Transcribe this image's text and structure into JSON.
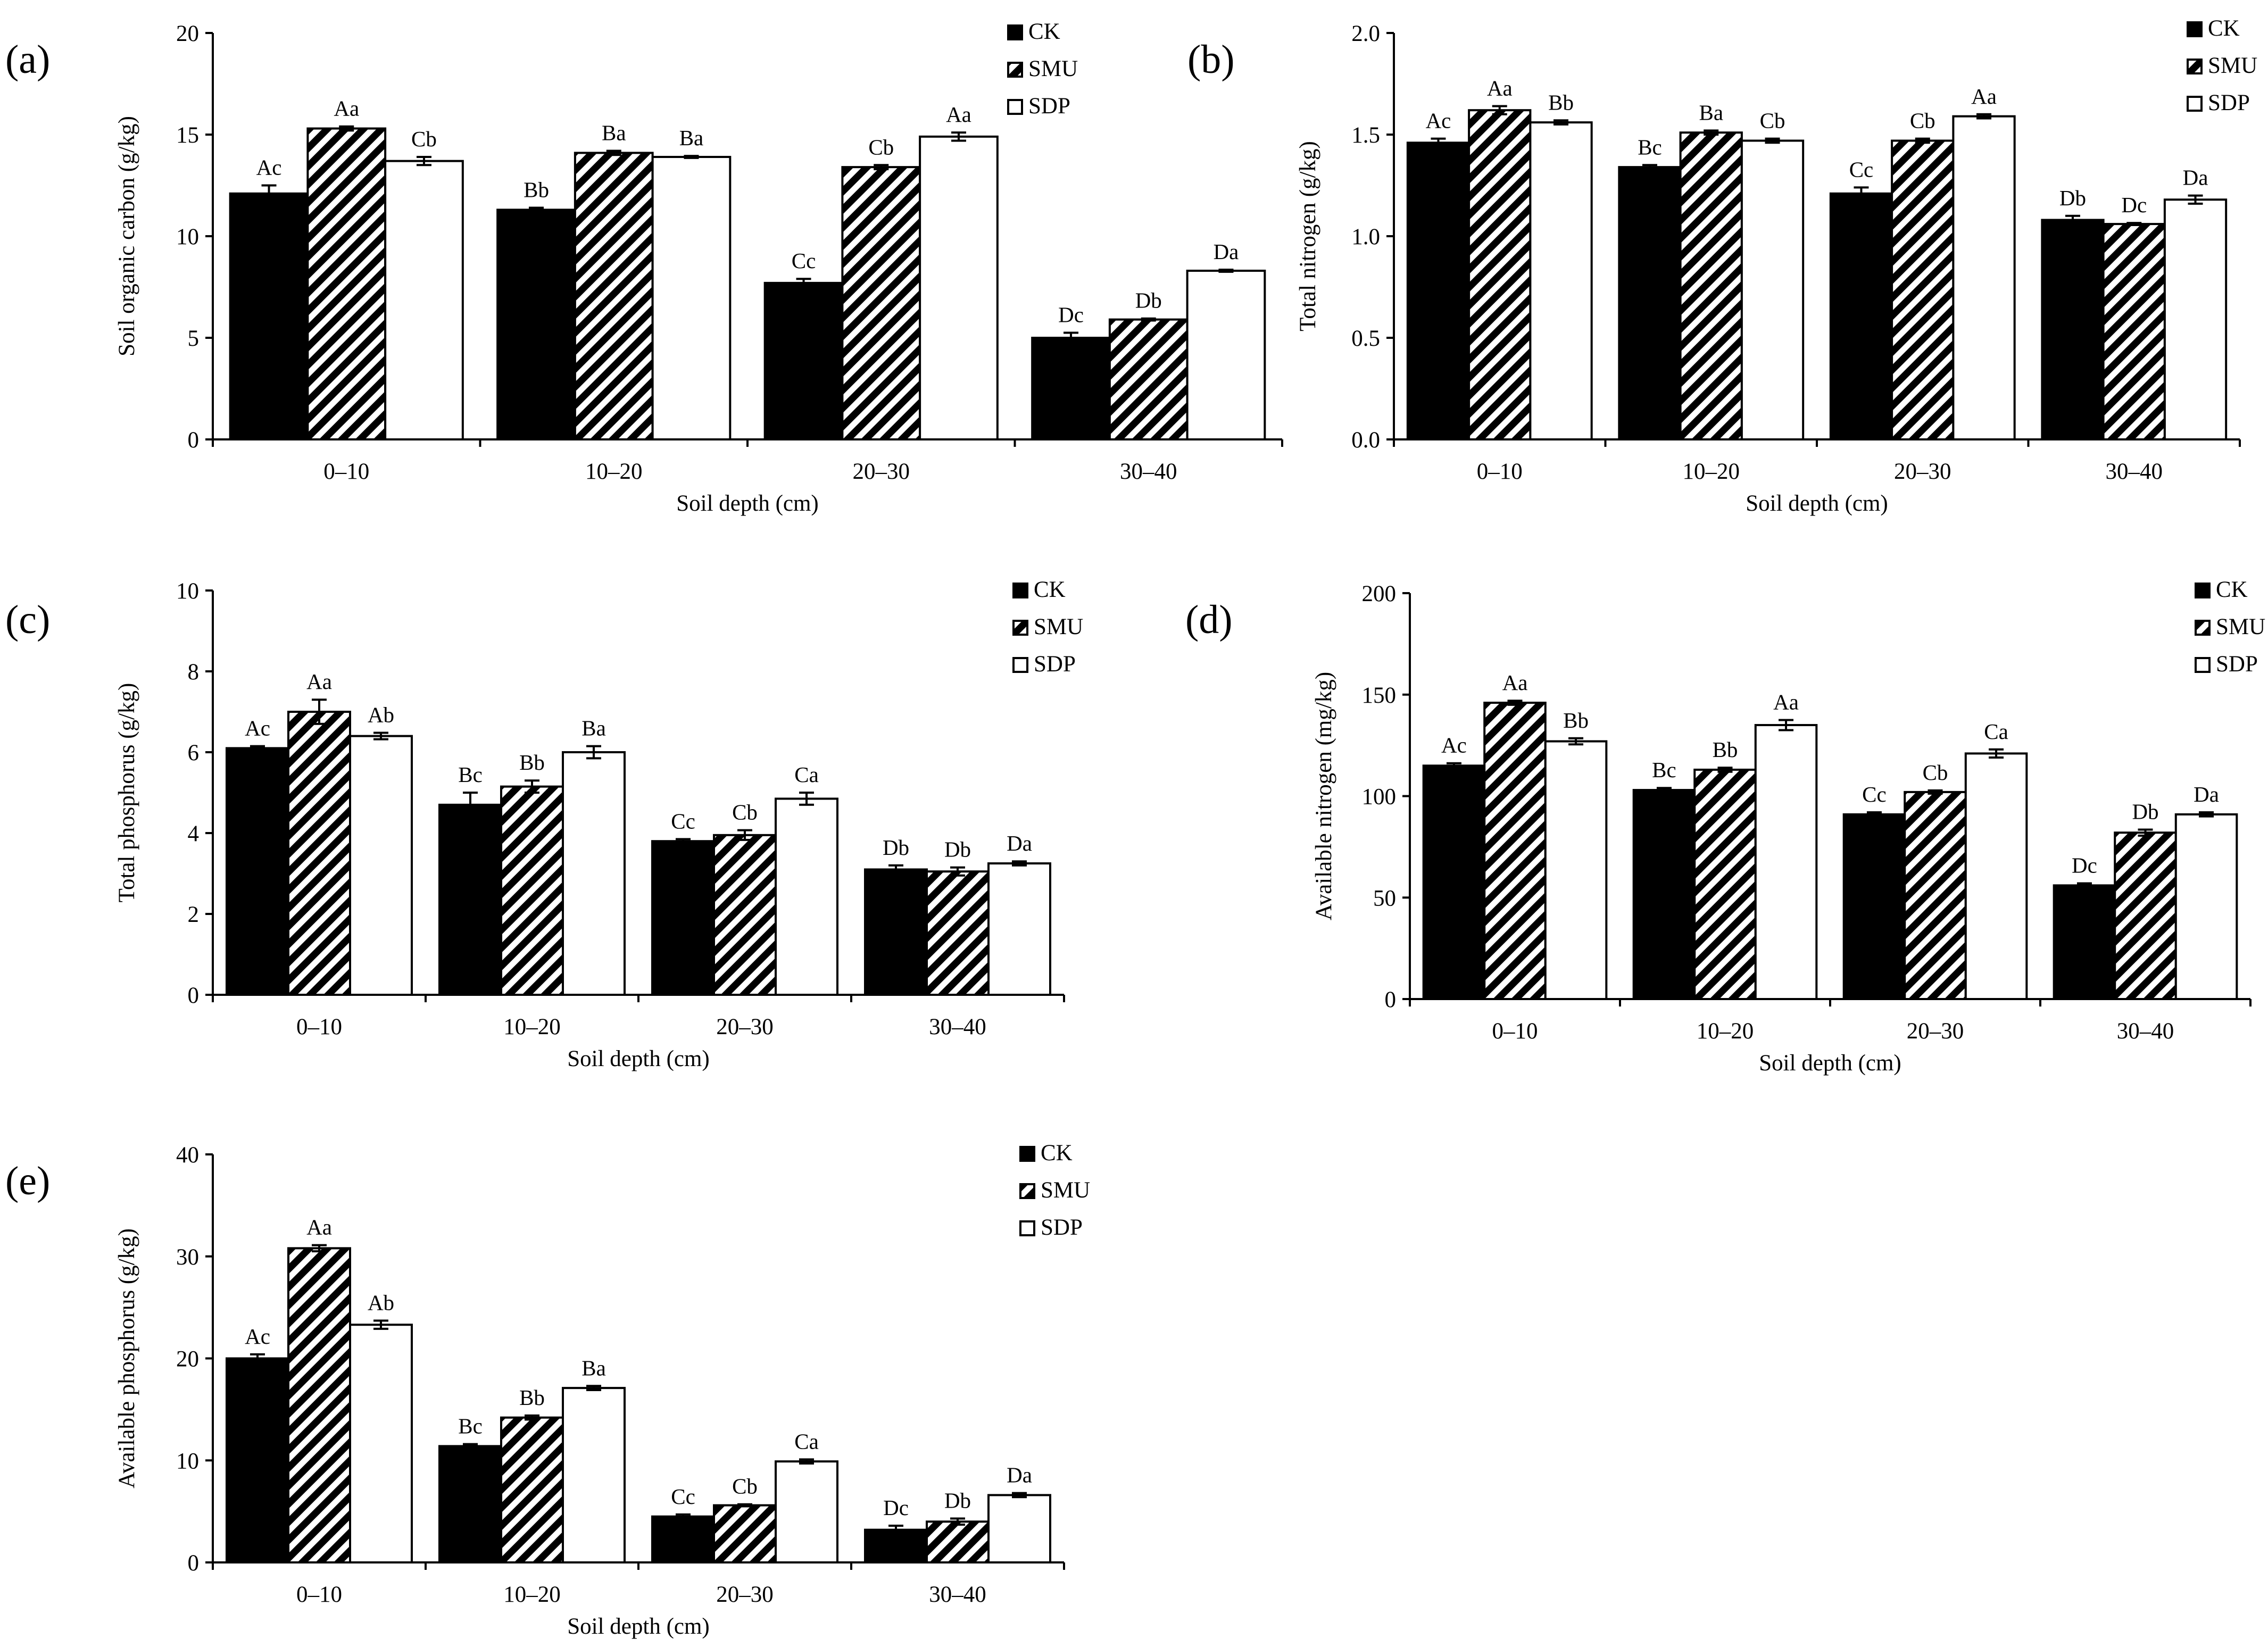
{
  "figure": {
    "series_names": [
      "CK",
      "SMU",
      "SDP"
    ],
    "series_fills": [
      "solid-black",
      "diagonal-hatch",
      "white"
    ],
    "colors": {
      "ink": "#000000",
      "paper": "#ffffff"
    }
  },
  "chart_data": [
    {
      "panel_label": "(a)",
      "type": "bar",
      "title": "",
      "xlabel": "Soil depth (cm)",
      "ylabel": "Soil organic carbon (g/kg)",
      "ylim": [
        0,
        20
      ],
      "yticks": [
        0,
        5,
        10,
        15,
        20
      ],
      "ytick_labels": [
        "0",
        "5",
        "10",
        "15",
        "20"
      ],
      "categories": [
        "0–10",
        "10–20",
        "20–30",
        "30–40"
      ],
      "legend": [
        "CK",
        "SMU",
        "SDP"
      ],
      "legend_position": "top-right",
      "series": [
        {
          "name": "CK",
          "values": [
            12.1,
            11.3,
            7.7,
            5.0
          ],
          "errors": [
            0.4,
            0.1,
            0.2,
            0.25
          ],
          "labels": [
            "Ac",
            "Bb",
            "Cc",
            "Dc"
          ]
        },
        {
          "name": "SMU",
          "values": [
            15.3,
            14.1,
            13.4,
            5.9
          ],
          "errors": [
            0.1,
            0.1,
            0.1,
            0.05
          ],
          "labels": [
            "Aa",
            "Ba",
            "Cb",
            "Db"
          ]
        },
        {
          "name": "SDP",
          "values": [
            13.7,
            13.9,
            14.9,
            8.3
          ],
          "errors": [
            0.2,
            0.05,
            0.2,
            0.05
          ],
          "labels": [
            "Cb",
            "Ba",
            "Aa",
            "Da"
          ]
        }
      ]
    },
    {
      "panel_label": "(b)",
      "type": "bar",
      "title": "",
      "xlabel": "Soil depth (cm)",
      "ylabel": "Total nitrogen (g/kg)",
      "ylim": [
        0,
        2
      ],
      "yticks": [
        0,
        0.5,
        1,
        1.5,
        2
      ],
      "ytick_labels": [
        "0.0",
        "0.5",
        "1.0",
        "1.5",
        "2.0"
      ],
      "categories": [
        "0–10",
        "10–20",
        "20–30",
        "30–40"
      ],
      "legend": [
        "CK",
        "SMU",
        "SDP"
      ],
      "legend_position": "top-right",
      "series": [
        {
          "name": "CK",
          "values": [
            1.46,
            1.34,
            1.21,
            1.08
          ],
          "errors": [
            0.02,
            0.01,
            0.03,
            0.02
          ],
          "labels": [
            "Ac",
            "Bc",
            "Cc",
            "Db"
          ]
        },
        {
          "name": "SMU",
          "values": [
            1.62,
            1.51,
            1.47,
            1.06
          ],
          "errors": [
            0.02,
            0.01,
            0.01,
            0.005
          ],
          "labels": [
            "Aa",
            "Ba",
            "Cb",
            "Dc"
          ]
        },
        {
          "name": "SDP",
          "values": [
            1.56,
            1.47,
            1.59,
            1.18
          ],
          "errors": [
            0.01,
            0.01,
            0.01,
            0.02
          ],
          "labels": [
            "Bb",
            "Cb",
            "Aa",
            "Da"
          ]
        }
      ]
    },
    {
      "panel_label": "(c)",
      "type": "bar",
      "title": "",
      "xlabel": "Soil depth (cm)",
      "ylabel": "Total phosphorus (g/kg)",
      "ylim": [
        0,
        10
      ],
      "yticks": [
        0,
        2,
        4,
        6,
        8,
        10
      ],
      "ytick_labels": [
        "0",
        "2",
        "4",
        "6",
        "8",
        "10"
      ],
      "categories": [
        "0–10",
        "10–20",
        "20–30",
        "30–40"
      ],
      "legend": [
        "CK",
        "SMU",
        "SDP"
      ],
      "legend_position": "top-right",
      "series": [
        {
          "name": "CK",
          "values": [
            6.1,
            4.7,
            3.8,
            3.1
          ],
          "errors": [
            0.05,
            0.3,
            0.05,
            0.1
          ],
          "labels": [
            "Ac",
            "Bc",
            "Cc",
            "Db"
          ]
        },
        {
          "name": "SMU",
          "values": [
            7.0,
            5.15,
            3.95,
            3.05
          ],
          "errors": [
            0.3,
            0.15,
            0.12,
            0.1
          ],
          "labels": [
            "Aa",
            "Bb",
            "Cb",
            "Db"
          ]
        },
        {
          "name": "SDP",
          "values": [
            6.4,
            6.0,
            4.85,
            3.25
          ],
          "errors": [
            0.08,
            0.15,
            0.15,
            0.05
          ],
          "labels": [
            "Ab",
            "Ba",
            "Ca",
            "Da"
          ]
        }
      ]
    },
    {
      "panel_label": "(d)",
      "type": "bar",
      "title": "",
      "xlabel": "Soil depth (cm)",
      "ylabel": "Available nitrogen (mg/kg)",
      "ylim": [
        0,
        200
      ],
      "yticks": [
        0,
        50,
        100,
        150,
        200
      ],
      "ytick_labels": [
        "0",
        "50",
        "100",
        "150",
        "200"
      ],
      "categories": [
        "0–10",
        "10–20",
        "20–30",
        "30–40"
      ],
      "legend": [
        "CK",
        "SMU",
        "SDP"
      ],
      "legend_position": "top-right",
      "series": [
        {
          "name": "CK",
          "values": [
            115,
            103,
            91,
            56
          ],
          "errors": [
            1.2,
            1.0,
            1.0,
            1.0
          ],
          "labels": [
            "Ac",
            "Bc",
            "Cc",
            "Dc"
          ]
        },
        {
          "name": "SMU",
          "values": [
            146,
            113,
            102,
            82
          ],
          "errors": [
            1.0,
            1.0,
            0.8,
            1.5
          ],
          "labels": [
            "Aa",
            "Bb",
            "Cb",
            "Db"
          ]
        },
        {
          "name": "SDP",
          "values": [
            127,
            135,
            121,
            91
          ],
          "errors": [
            1.5,
            2.5,
            2.0,
            1.0
          ],
          "labels": [
            "Bb",
            "Aa",
            "Ca",
            "Da"
          ]
        }
      ]
    },
    {
      "panel_label": "(e)",
      "type": "bar",
      "title": "",
      "xlabel": "Soil depth (cm)",
      "ylabel": "Available  phosphorus (g/kg)",
      "ylim": [
        0,
        40
      ],
      "yticks": [
        0,
        10,
        20,
        30,
        40
      ],
      "ytick_labels": [
        "0",
        "10",
        "20",
        "30",
        "40"
      ],
      "categories": [
        "0–10",
        "10–20",
        "20–30",
        "30–40"
      ],
      "legend": [
        "CK",
        "SMU",
        "SDP"
      ],
      "legend_position": "top-right",
      "series": [
        {
          "name": "CK",
          "values": [
            20.0,
            11.4,
            4.5,
            3.2
          ],
          "errors": [
            0.4,
            0.2,
            0.2,
            0.4
          ],
          "labels": [
            "Ac",
            "Bc",
            "Cc",
            "Dc"
          ]
        },
        {
          "name": "SMU",
          "values": [
            30.8,
            14.2,
            5.6,
            4.0
          ],
          "errors": [
            0.3,
            0.2,
            0.1,
            0.3
          ],
          "labels": [
            "Aa",
            "Bb",
            "Cb",
            "Db"
          ]
        },
        {
          "name": "SDP",
          "values": [
            23.3,
            17.1,
            9.9,
            6.6
          ],
          "errors": [
            0.4,
            0.2,
            0.2,
            0.2
          ],
          "labels": [
            "Ab",
            "Ba",
            "Ca",
            "Da"
          ]
        }
      ]
    }
  ]
}
